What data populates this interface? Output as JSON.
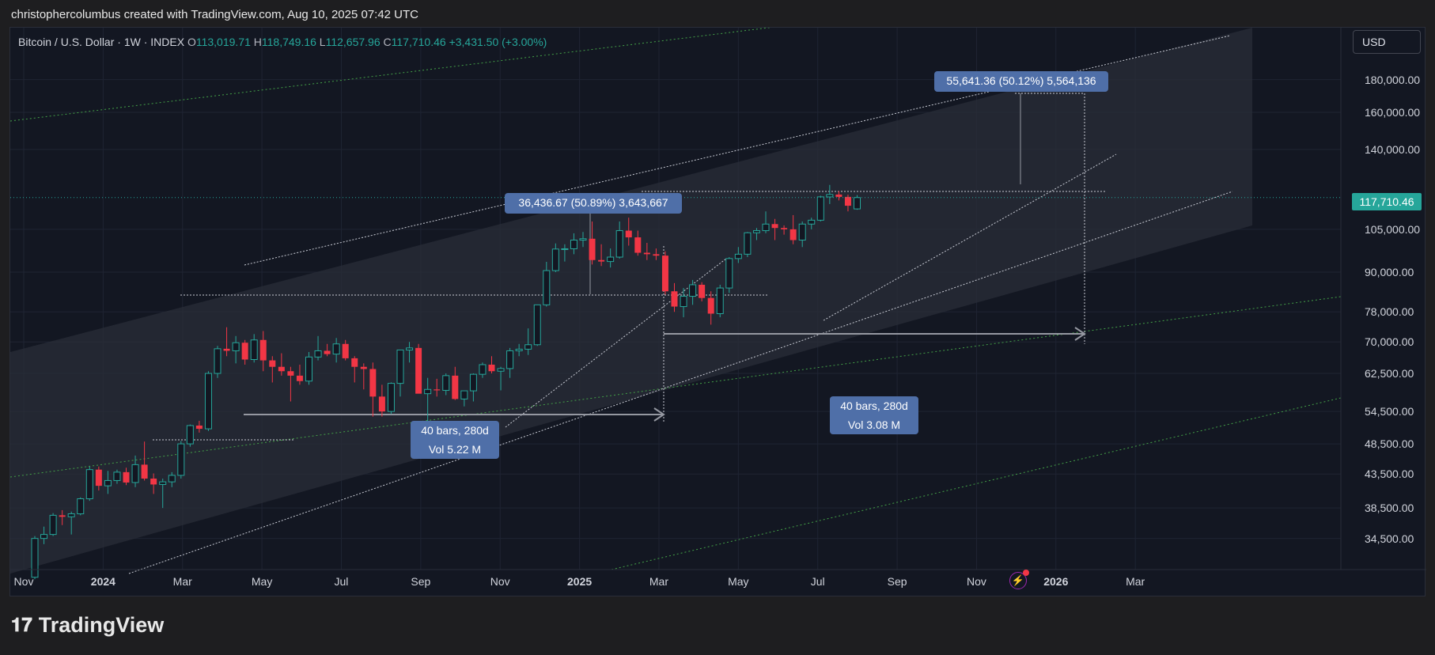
{
  "header": {
    "attribution": "christophercolumbus created with TradingView.com, Aug 10, 2025 07:42 UTC"
  },
  "legend": {
    "symbol": "Bitcoin / U.S. Dollar · 1W · INDEX",
    "o_label": "O",
    "o": "113,019.71",
    "h_label": "H",
    "h": "118,749.16",
    "l_label": "L",
    "l": "112,657.96",
    "c_label": "C",
    "c": "117,710.46",
    "change": "+3,431.50 (+3.00%)"
  },
  "currency": "USD",
  "last_price": "117,710.46",
  "measure_1": {
    "line1": "40 bars, 280d",
    "line2": "Vol 5.22 M"
  },
  "measure_2": {
    "line1": "40 bars, 280d",
    "line2": "Vol 3.08 M"
  },
  "price_range_1": "36,436.67 (50.89%) 3,643,667",
  "price_range_2": "55,641.36 (50.12%) 5,564,136",
  "brand": "TradingView",
  "colors": {
    "up": "#26a69a",
    "down": "#f23645",
    "bubble": "#4f6fa8",
    "bg": "#131722"
  },
  "chart_data": {
    "type": "candlestick",
    "scale": "log",
    "x_ticks": [
      {
        "label": "Nov",
        "date": "2023-11",
        "bold": false
      },
      {
        "label": "2024",
        "date": "2024-01",
        "bold": true
      },
      {
        "label": "Mar",
        "date": "2024-03",
        "bold": false
      },
      {
        "label": "May",
        "date": "2024-05",
        "bold": false
      },
      {
        "label": "Jul",
        "date": "2024-07",
        "bold": false
      },
      {
        "label": "Sep",
        "date": "2024-09",
        "bold": false
      },
      {
        "label": "Nov",
        "date": "2024-11",
        "bold": false
      },
      {
        "label": "2025",
        "date": "2025-01",
        "bold": true
      },
      {
        "label": "Mar",
        "date": "2025-03",
        "bold": false
      },
      {
        "label": "May",
        "date": "2025-05",
        "bold": false
      },
      {
        "label": "Jul",
        "date": "2025-07",
        "bold": false
      },
      {
        "label": "Sep",
        "date": "2025-09",
        "bold": false
      },
      {
        "label": "Nov",
        "date": "2025-11",
        "bold": false
      },
      {
        "label": "2026",
        "date": "2026-01",
        "bold": true
      },
      {
        "label": "Mar",
        "date": "2026-03",
        "bold": false
      }
    ],
    "y_ticks": [
      {
        "label": "180,000.00",
        "value": 180000
      },
      {
        "label": "160,000.00",
        "value": 160000
      },
      {
        "label": "140,000.00",
        "value": 140000
      },
      {
        "label": "105,000.00",
        "value": 105000
      },
      {
        "label": "90,000.00",
        "value": 90000
      },
      {
        "label": "78,000.00",
        "value": 78000
      },
      {
        "label": "70,000.00",
        "value": 70000
      },
      {
        "label": "62,500.00",
        "value": 62500
      },
      {
        "label": "54,500.00",
        "value": 54500
      },
      {
        "label": "48,500.00",
        "value": 48500
      },
      {
        "label": "43,500.00",
        "value": 43500
      },
      {
        "label": "38,500.00",
        "value": 38500
      },
      {
        "label": "34,500.00",
        "value": 34500
      }
    ],
    "candles": [
      [
        30000,
        34800,
        29800,
        34500
      ],
      [
        34500,
        36000,
        33800,
        35000
      ],
      [
        35000,
        37800,
        34800,
        37500
      ],
      [
        37500,
        38200,
        36200,
        37300
      ],
      [
        37300,
        38000,
        35000,
        37700
      ],
      [
        37700,
        40000,
        37500,
        39800
      ],
      [
        39800,
        44700,
        39500,
        44200
      ],
      [
        44200,
        44700,
        41000,
        41700
      ],
      [
        41700,
        44000,
        40500,
        42500
      ],
      [
        42500,
        44200,
        42000,
        43800
      ],
      [
        43800,
        44500,
        41800,
        42200
      ],
      [
        42200,
        46500,
        41500,
        45000
      ],
      [
        45000,
        48900,
        42500,
        42800
      ],
      [
        42800,
        43600,
        40500,
        41900
      ],
      [
        41900,
        42800,
        38500,
        42300
      ],
      [
        42300,
        43800,
        41500,
        43300
      ],
      [
        43300,
        49000,
        42800,
        48500
      ],
      [
        48500,
        52000,
        48000,
        51800
      ],
      [
        51800,
        52700,
        50500,
        51200
      ],
      [
        51200,
        63000,
        50800,
        62500
      ],
      [
        62500,
        69000,
        61500,
        68300
      ],
      [
        68300,
        73800,
        66500,
        67800
      ],
      [
        67800,
        71500,
        64800,
        69800
      ],
      [
        69800,
        70500,
        64500,
        65700
      ],
      [
        65700,
        72000,
        65000,
        70500
      ],
      [
        70500,
        72800,
        63000,
        65500
      ],
      [
        65500,
        66500,
        60500,
        64000
      ],
      [
        64000,
        67200,
        62000,
        63000
      ],
      [
        63000,
        64000,
        56500,
        62000
      ],
      [
        62000,
        64500,
        60000,
        60800
      ],
      [
        60800,
        67500,
        60000,
        66300
      ],
      [
        66300,
        71500,
        65500,
        67800
      ],
      [
        67800,
        69500,
        66500,
        67000
      ],
      [
        67000,
        71000,
        65000,
        69500
      ],
      [
        69500,
        70500,
        65500,
        66000
      ],
      [
        66000,
        66500,
        60500,
        64000
      ],
      [
        64000,
        64800,
        59000,
        63500
      ],
      [
        63500,
        65000,
        53500,
        57500
      ],
      [
        57500,
        60000,
        53500,
        54500
      ],
      [
        54500,
        60500,
        54000,
        60300
      ],
      [
        60300,
        68000,
        57500,
        68000
      ],
      [
        68000,
        70000,
        65000,
        68500
      ],
      [
        68500,
        69500,
        58500,
        58100
      ],
      [
        58100,
        61500,
        49500,
        59000
      ],
      [
        59000,
        61300,
        57500,
        58800
      ],
      [
        58800,
        62500,
        57800,
        62000
      ],
      [
        62000,
        64000,
        56800,
        57000
      ],
      [
        57000,
        58500,
        55500,
        58700
      ],
      [
        58700,
        62500,
        56500,
        62300
      ],
      [
        62300,
        65000,
        61500,
        64500
      ],
      [
        64500,
        66500,
        62500,
        63000
      ],
      [
        63000,
        64000,
        58800,
        63600
      ],
      [
        63600,
        68500,
        61500,
        67800
      ],
      [
        67800,
        69500,
        66500,
        68200
      ],
      [
        68200,
        73500,
        66800,
        69300
      ],
      [
        69300,
        80000,
        69000,
        80000
      ],
      [
        80000,
        93400,
        79500,
        90500
      ],
      [
        90500,
        99800,
        90000,
        97800
      ],
      [
        97800,
        99500,
        93500,
        97900
      ],
      [
        97900,
        103500,
        96000,
        101000
      ],
      [
        101000,
        104000,
        98500,
        101500
      ],
      [
        101500,
        108000,
        92500,
        94000
      ],
      [
        94000,
        99500,
        92000,
        93500
      ],
      [
        93500,
        98000,
        91500,
        95000
      ],
      [
        95000,
        108000,
        94500,
        104500
      ],
      [
        104500,
        109500,
        99000,
        102000
      ],
      [
        102000,
        104500,
        95500,
        96500
      ],
      [
        96500,
        100000,
        94000,
        96000
      ],
      [
        96000,
        98000,
        94000,
        95500
      ],
      [
        95500,
        97000,
        83000,
        84000
      ],
      [
        84000,
        86500,
        78000,
        79500
      ],
      [
        79500,
        85000,
        76500,
        82500
      ],
      [
        82500,
        87500,
        80000,
        86000
      ],
      [
        86000,
        86800,
        81000,
        82000
      ],
      [
        82000,
        84000,
        74500,
        77500
      ],
      [
        77500,
        86000,
        76500,
        85000
      ],
      [
        85000,
        95000,
        83500,
        94500
      ],
      [
        94500,
        98500,
        93000,
        96000
      ],
      [
        96000,
        104000,
        95000,
        103700
      ],
      [
        103700,
        105500,
        101000,
        104500
      ],
      [
        104500,
        112000,
        103500,
        107000
      ],
      [
        107000,
        109000,
        101000,
        105500
      ],
      [
        105500,
        106500,
        103000,
        105000
      ],
      [
        105000,
        110500,
        99500,
        101000
      ],
      [
        101000,
        108000,
        98500,
        107000
      ],
      [
        107000,
        109500,
        105000,
        108500
      ],
      [
        108500,
        118500,
        108000,
        118000
      ],
      [
        118000,
        123200,
        115000,
        119000
      ],
      [
        119000,
        120500,
        116500,
        118000
      ],
      [
        118000,
        119000,
        112000,
        114300
      ],
      [
        113000,
        118749,
        112658,
        117710
      ]
    ]
  }
}
